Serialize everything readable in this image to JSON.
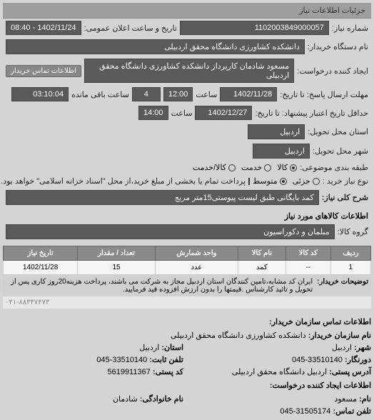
{
  "header": "جزئیات اطلاعات نیاز",
  "fields": {
    "request_num_label": "شماره نیاز:",
    "request_num": "1102003849000057",
    "announce_label": "تاریخ و ساعت اعلان عمومی:",
    "announce_value": "1402/11/24 - 08:40",
    "org_label": "نام دستگاه خریدار:",
    "org_value": "دانشکده کشاورزی دانشگاه محقق اردبیلی",
    "creator_label": "ایجاد کننده درخواست:",
    "creator_value": "مسعود شادمان کارپرداز دانشکده کشاورزی دانشگاه محقق اردبیلی",
    "contact_btn": "اطلاعات تماس خریدار",
    "deadline_label": "مهلت ارسال پاسخ: تا تاریخ:",
    "deadline_date": "1402/11/28",
    "deadline_time_label": "ساعت",
    "deadline_time": "12:00",
    "days_label": "",
    "days_value": "4",
    "remain_label": "ساعت باقی مانده",
    "remain_value": "03:10:04",
    "min_date_label": "حداقل تاریخ اعتبار پیشنهاد: تا تاریخ:",
    "min_date": "1402/12/27",
    "min_time_label": "ساعت",
    "min_time": "14:00",
    "delivery_state_label": "استان محل تحویل:",
    "delivery_state": "اردبیل",
    "delivery_city_label": "شهر محل تحویل:",
    "delivery_city": "اردبیل",
    "package_label": "طبقه بندی موضوعی:",
    "radio_goods": "کالا",
    "radio_service": "خدمت",
    "radio_goods_service": "کالا/خدمت",
    "priority_label": "نوع نیاز خرید :",
    "radio_low": "جزئی",
    "radio_mid": "متوسط",
    "checkbox_text": "پرداخت تمام یا بخشی از مبلغ خرید،از محل \"اسناد خزانه اسلامی\" خواهد بود.",
    "desc_label": "شرح کلی نیاز:",
    "desc_value": "کمد بایگانی طبق لیست پیوستی15متر مربع",
    "goods_label": "اطلاعات کالاهای مورد نیاز",
    "group_label": "گروه کالا:",
    "group_value": "مبلمان و دکوراسیون"
  },
  "table": {
    "headers": [
      "ردیف",
      "کد کالا",
      "نام کالا",
      "واحد شمارش",
      "تعداد / مقدار",
      "تاریخ نیاز"
    ],
    "rows": [
      [
        "1",
        "--",
        "کمد",
        "عدد",
        "15",
        "1402/11/28"
      ]
    ]
  },
  "note": {
    "label": "توضیحات خریدار:",
    "text": "ایران کد مشابه،تامین کنندگان استان اردبیل مجاز به شرکت می باشند، پرداخت هزینه20روز کاری پس از تحویل و تائید کارشناس .قیمتها را بدون ارزش افزوده قید فرمایید."
  },
  "watermark": "۰۲۱-۸۸۳۴۷۴۷۳",
  "contact": {
    "header": "اطلاعات تماس سازمان خریدار:",
    "org_label": "نام سازمان خریدار:",
    "org": "دانشکده کشاورزی دانشگاه محقق اردبیلی",
    "city_label": "شهر:",
    "city": "اردبیل",
    "state_label": "استان:",
    "state": "اردبیل",
    "fax_label": "دورنگار:",
    "fax": "33510140-045",
    "phone_label": "تلفن ثابت:",
    "phone": "33510140-045",
    "addr_label": "آدرس پستی:",
    "addr": "اردبیل دانشگاه محقق اردبیلی",
    "post_label": "کد پستی:",
    "post": "5619911367",
    "creator_header": "اطلاعات ایجاد کننده درخواست:",
    "name_label": "نام:",
    "name": "مسعود",
    "family_label": "نام خانوادگی:",
    "family": "شادمان",
    "mobile_label": "تلفن تماس:",
    "mobile": "31505174-045"
  }
}
